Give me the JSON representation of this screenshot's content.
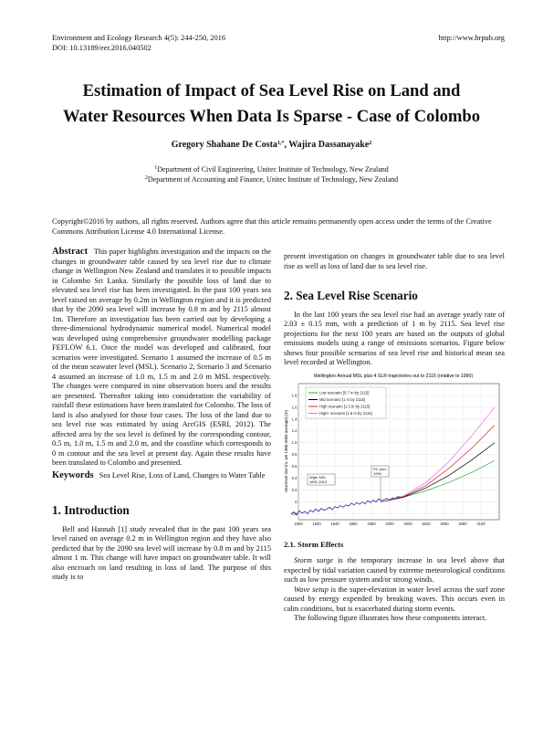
{
  "header": {
    "journal": "Environment and Ecology Research 4(5): 244-250, 2016",
    "url": "http://www.hrpub.org",
    "doi": "DOI: 10.13189/eer.2016.040502"
  },
  "title_line1": "Estimation of Impact of Sea Level Rise on Land and",
  "title_line2": "Water Resources When Data Is Sparse - Case of Colombo",
  "authors": {
    "author1": "Gregory Shahane De Costa",
    "sup1": "1,*",
    "sep": ", ",
    "author2": "Wajira Dassanayake",
    "sup2": "2"
  },
  "affiliations": {
    "sup1": "1",
    "aff1": "Department of Civil Engineering, Unitec Institute of Technology, New Zealand",
    "sup2": "2",
    "aff2": "Department of Accounting and Finance, Unitec Institute of Technology, New Zealand"
  },
  "copyright": "Copyright©2016 by authors, all rights reserved. Authors agree that this article remains permanently open access under the terms of the Creative Commons Attribution License 4.0 International License.",
  "abstract": {
    "label": "Abstract",
    "text": "This paper highlights investigation and the impacts on the changes in groundwater table caused by sea level rise due to climate change in Wellington New Zealand and translates it to possible impacts in Colombo Sri Lanka. Similarly the possible loss of land due to elevated sea level rise has been investigated. In the past 100 years sea level raised on average by 0.2m in Wellington region and it is predicted that by the 2090 sea level will increase by 0.8 m and by 2115 almost 1m. Therefore an investigation has been carried out by developing a three-dimensional hydrodynamic numerical model. Numerical model was developed using comprehensive groundwater modelling package FEFLOW 6.1. Once the model was developed and calibrated, four scenarios were investigated. Scenario 1 assumed the increase of 0.5 m of the mean seawater level (MSL). Scenario 2, Scenario 3 and Scenario 4 assumed an increase of 1.0 m, 1.5 m and 2.0 m MSL respectively. The changes were compared in nine observation bores and the results are presented. Thereafter taking into consideration the variability of rainfall these estimations have been translated for Colombo. The loss of land is also analysed for those four cases. The loss of the land due to sea level rise was estimated by using ArcGIS (ESRI, 2012). The affected area by the sea level is defined by the corresponding contour, 0.5 m, 1.0 m, 1.5 m and 2.0 m, and the coastline which corresponds to 0 m contour and the sea level at present day. Again these results have been translated to Colombo and presented."
  },
  "keywords": {
    "label": "Keywords",
    "text": "Sea Level Rise, Loss of Land, Changes to Water Table"
  },
  "intro": {
    "heading": "1. Introduction",
    "text": "Bell and Hannah [1] study revealed that in the past 100 years sea level raised on average 0.2 m in Wellington region and they have also predicted that by the 2090 sea level will increase by 0.8 m and by 2115 almost 1 m. This change will have impact on groundwater table. It will also encroach on land resulting in loss of land. The purpose of this study is to"
  },
  "right_top": "present investigation on changes in groundwater table due to sea level rise as well as loss of land due to sea level rise.",
  "section2": {
    "heading": "2. Sea Level Rise Scenario",
    "text": "In the last 100 years the sea level rise had an average yearly rate of 2.03 ± 0.15 mm, with a prediction of 1 m by 2115. Sea level rise projections for the next 100 years are based on the outputs of global emissions models using a range of emissions scenarios. Figure below shows four possible scenarios of sea level rise and historical mean sea level recorded at Wellington."
  },
  "section21": {
    "heading": "2.1. Storm Effects",
    "p1_term": "Storm surge",
    "p1_text": " is the temporary increase in sea level above that expected by tidal variation caused by extreme meteorological conditions such as low pressure system and/or strong winds.",
    "p2_term": "Wave setup",
    "p2_text": " is the super-elevation in water level across the surf zone caused by energy expended by breaking waves. This occurs even in calm conditions, but is exacerbated during storm events.",
    "p3_text": "The following figure illustrates how these components interact."
  },
  "chart_data": {
    "type": "line",
    "title": "Wellington Annual MSL plus 4 SLR trajectories out to 2115 (relative to 1990)",
    "ylabel": "Sea-level rise (m, wrt 1986-2005 average) (m)",
    "xlim": [
      1900,
      2120
    ],
    "ylim": [
      -0.3,
      2.0
    ],
    "x_ticks": [
      "1900",
      "1920",
      "1940",
      "1960",
      "1980",
      "2000",
      "2020",
      "2040",
      "2060",
      "2080",
      "2100"
    ],
    "y_ticks": [
      "-0.2",
      "0",
      "0.2",
      "0.4",
      "0.6",
      "0.8",
      "1.0",
      "1.2",
      "1.4",
      "1.6",
      "1.8"
    ],
    "legend_position": "top-left",
    "annotations": [
      {
        "text": "Wgtn MSL",
        "text2": "1891-2013"
      },
      {
        "text": "PC prev",
        "text2": "1990"
      }
    ],
    "series": [
      {
        "name": "Low scenario [0.7 m by 2115]",
        "color": "#33aa33",
        "x": [
          1990,
          2015,
          2040,
          2065,
          2090,
          2115
        ],
        "y": [
          0.0,
          0.08,
          0.19,
          0.33,
          0.5,
          0.7
        ]
      },
      {
        "name": "Mid scenario [1 m by 2115]",
        "color": "#000000",
        "x": [
          1990,
          2015,
          2040,
          2065,
          2090,
          2115
        ],
        "y": [
          0.0,
          0.08,
          0.24,
          0.45,
          0.71,
          1.0
        ]
      },
      {
        "name": "High scenario [1.3 m by 2115]",
        "color": "#dd2222",
        "x": [
          1990,
          2015,
          2040,
          2065,
          2090,
          2115
        ],
        "y": [
          0.0,
          0.09,
          0.28,
          0.57,
          0.91,
          1.3
        ]
      },
      {
        "name": "High+ scenario [1.6 m by 2115]",
        "color": "#ee66ee",
        "x": [
          1990,
          2015,
          2040,
          2065,
          2090,
          2115
        ],
        "y": [
          0.0,
          0.1,
          0.33,
          0.68,
          1.12,
          1.6
        ]
      },
      {
        "name": "Wellington annual MSL",
        "color": "#1a2fa0",
        "x": [
          1892,
          1895,
          1898,
          1901,
          1904,
          1907,
          1910,
          1913,
          1916,
          1919,
          1922,
          1925,
          1928,
          1931,
          1934,
          1937,
          1940,
          1943,
          1946,
          1949,
          1952,
          1955,
          1958,
          1961,
          1964,
          1967,
          1970,
          1973,
          1976,
          1979,
          1982,
          1985,
          1988,
          1991,
          1994,
          1997,
          2000,
          2003,
          2006,
          2009,
          2012
        ],
        "y": [
          -0.2,
          -0.17,
          -0.22,
          -0.15,
          -0.19,
          -0.16,
          -0.2,
          -0.14,
          -0.17,
          -0.12,
          -0.16,
          -0.11,
          -0.14,
          -0.12,
          -0.09,
          -0.13,
          -0.08,
          -0.1,
          -0.06,
          -0.09,
          -0.05,
          -0.07,
          -0.02,
          -0.05,
          -0.01,
          -0.04,
          0.0,
          -0.03,
          0.02,
          -0.01,
          0.03,
          0.0,
          0.05,
          0.02,
          0.04,
          0.06,
          0.03,
          0.07,
          0.05,
          0.09,
          0.08
        ]
      }
    ]
  }
}
